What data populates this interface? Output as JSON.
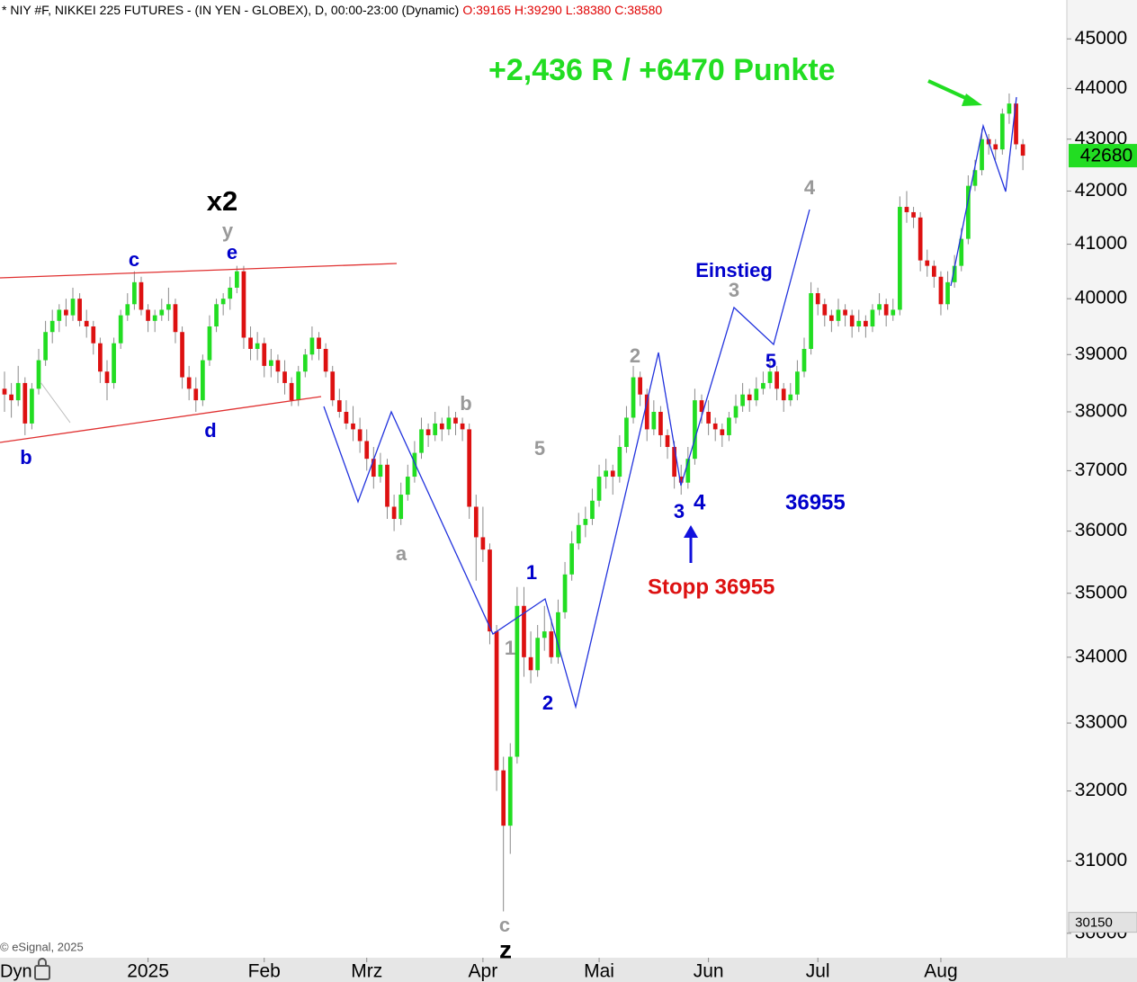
{
  "chart_data": {
    "type": "candlestick",
    "header": "* NIY #F, NIKKEI 225 FUTURES - (IN YEN - GLOBEX), D, 00:00-23:00 (Dynamic)",
    "header_ohlc": "O:39165 H:39290 L:38380 C:38580",
    "copyright": "© eSignal, 2025",
    "footer_left": "Dyn",
    "up_color": "#22dd22",
    "down_color": "#dd1111",
    "log_scale": true,
    "ylim": [
      29670,
      45800
    ],
    "yticks": [
      30000,
      31000,
      32000,
      33000,
      34000,
      35000,
      36000,
      37000,
      38000,
      39000,
      40000,
      41000,
      42000,
      43000,
      44000,
      45000
    ],
    "xlim": [
      -0.66,
      155.3
    ],
    "xticks": [
      {
        "value": 21,
        "label": "2025"
      },
      {
        "value": 38,
        "label": "Feb"
      },
      {
        "value": 53,
        "label": "Mrz"
      },
      {
        "value": 70,
        "label": "Apr"
      },
      {
        "value": 87,
        "label": "Mai"
      },
      {
        "value": 103,
        "label": "Jun"
      },
      {
        "value": 119,
        "label": "Jul"
      },
      {
        "value": 137,
        "label": "Aug"
      }
    ],
    "last_price": 42680,
    "last_price_color": "#22dd22",
    "low_marker": 30150,
    "annotations": [
      {
        "text": "+2,436 R / +6470 Punkte",
        "color": "#22dd22"
      },
      {
        "text": "x2",
        "color": "#000000"
      },
      {
        "text": "y",
        "color": "#999999"
      },
      {
        "text": "e",
        "color": "#0000cc"
      },
      {
        "text": "c",
        "color": "#0000cc"
      },
      {
        "text": "d",
        "color": "#0000cc"
      },
      {
        "text": "b",
        "color": "#0000cc"
      },
      {
        "text": "b",
        "color": "#999999"
      },
      {
        "text": "a",
        "color": "#999999"
      },
      {
        "text": "c",
        "color": "#999999"
      },
      {
        "text": "z",
        "color": "#000000"
      },
      {
        "text": "1",
        "color": "#0000cc"
      },
      {
        "text": "1",
        "color": "#999999"
      },
      {
        "text": "2",
        "color": "#0000cc"
      },
      {
        "text": "2",
        "color": "#999999"
      },
      {
        "text": "3",
        "color": "#0000cc"
      },
      {
        "text": "4",
        "color": "#0000cc"
      },
      {
        "text": "36955",
        "color": "#0000cc"
      },
      {
        "text": "Stopp 36955",
        "color": "#dd1111"
      },
      {
        "text": "Einstieg",
        "color": "#0000cc"
      },
      {
        "text": "3",
        "color": "#999999"
      },
      {
        "text": "5",
        "color": "#0000cc"
      },
      {
        "text": "4",
        "color": "#999999"
      },
      {
        "text": "5",
        "color": "#999999"
      }
    ],
    "candles": [
      [
        38400,
        38700,
        38000,
        38300
      ],
      [
        38300,
        38500,
        37900,
        38200
      ],
      [
        38200,
        38800,
        38100,
        38500
      ],
      [
        38500,
        38600,
        37600,
        37800
      ],
      [
        37800,
        38500,
        37700,
        38400
      ],
      [
        38400,
        39100,
        38300,
        38900
      ],
      [
        38900,
        39600,
        38800,
        39400
      ],
      [
        39400,
        39800,
        39200,
        39600
      ],
      [
        39600,
        39900,
        39400,
        39800
      ],
      [
        39800,
        40000,
        39500,
        39700
      ],
      [
        39700,
        40200,
        39600,
        40000
      ],
      [
        40000,
        40100,
        39500,
        39600
      ],
      [
        39600,
        39800,
        39300,
        39500
      ],
      [
        39500,
        39600,
        39000,
        39200
      ],
      [
        39200,
        39300,
        38500,
        38700
      ],
      [
        38700,
        38900,
        38200,
        38500
      ],
      [
        38500,
        39300,
        38400,
        39200
      ],
      [
        39200,
        39800,
        39100,
        39700
      ],
      [
        39700,
        40100,
        39600,
        39900
      ],
      [
        39900,
        40500,
        39800,
        40300
      ],
      [
        40300,
        40400,
        39700,
        39800
      ],
      [
        39800,
        39900,
        39400,
        39600
      ],
      [
        39600,
        39800,
        39400,
        39700
      ],
      [
        39700,
        40000,
        39600,
        39800
      ],
      [
        39800,
        40200,
        39600,
        39900
      ],
      [
        39900,
        40000,
        39200,
        39400
      ],
      [
        39400,
        39500,
        38400,
        38600
      ],
      [
        38600,
        38800,
        38200,
        38400
      ],
      [
        38400,
        38600,
        38000,
        38200
      ],
      [
        38200,
        39000,
        38100,
        38900
      ],
      [
        38900,
        39700,
        38800,
        39500
      ],
      [
        39500,
        40000,
        39400,
        39900
      ],
      [
        39900,
        40100,
        39700,
        40000
      ],
      [
        40000,
        40400,
        39800,
        40200
      ],
      [
        40200,
        40600,
        40100,
        40500
      ],
      [
        40500,
        40600,
        39100,
        39300
      ],
      [
        39300,
        39500,
        38900,
        39100
      ],
      [
        39100,
        39400,
        38900,
        39200
      ],
      [
        39200,
        39300,
        38600,
        38800
      ],
      [
        38800,
        39100,
        38600,
        38900
      ],
      [
        38900,
        39000,
        38500,
        38700
      ],
      [
        38700,
        38900,
        38300,
        38500
      ],
      [
        38500,
        38600,
        38100,
        38200
      ],
      [
        38200,
        38800,
        38100,
        38700
      ],
      [
        38700,
        39100,
        38600,
        39000
      ],
      [
        39000,
        39500,
        38900,
        39300
      ],
      [
        39300,
        39400,
        38900,
        39100
      ],
      [
        39100,
        39200,
        38600,
        38700
      ],
      [
        38700,
        38800,
        38100,
        38200
      ],
      [
        38200,
        38400,
        37900,
        38000
      ],
      [
        38000,
        38200,
        37700,
        37800
      ],
      [
        37800,
        38100,
        37500,
        37700
      ],
      [
        37700,
        37900,
        37300,
        37500
      ],
      [
        37500,
        37700,
        37000,
        37200
      ],
      [
        37200,
        37400,
        36700,
        36900
      ],
      [
        36900,
        37300,
        36800,
        37100
      ],
      [
        37100,
        37200,
        36200,
        36400
      ],
      [
        36400,
        36600,
        36000,
        36200
      ],
      [
        36200,
        36800,
        36100,
        36600
      ],
      [
        36600,
        37100,
        36500,
        36900
      ],
      [
        36900,
        37500,
        36800,
        37300
      ],
      [
        37300,
        37900,
        37200,
        37700
      ],
      [
        37700,
        37800,
        37400,
        37600
      ],
      [
        37600,
        38000,
        37500,
        37800
      ],
      [
        37800,
        37900,
        37500,
        37700
      ],
      [
        37700,
        38100,
        37600,
        37900
      ],
      [
        37900,
        38000,
        37600,
        37800
      ],
      [
        37800,
        37900,
        37500,
        37700
      ],
      [
        37700,
        37800,
        36200,
        36400
      ],
      [
        36400,
        36600,
        35200,
        35900
      ],
      [
        35900,
        36400,
        35500,
        35700
      ],
      [
        35700,
        35800,
        34200,
        34400
      ],
      [
        34400,
        34500,
        32000,
        32300
      ],
      [
        32300,
        32500,
        30300,
        31500
      ],
      [
        31500,
        32700,
        31100,
        32500
      ],
      [
        32500,
        35100,
        32400,
        34800
      ],
      [
        34800,
        35100,
        33700,
        34000
      ],
      [
        34000,
        34400,
        33600,
        33800
      ],
      [
        33800,
        34500,
        33700,
        34300
      ],
      [
        34300,
        34800,
        34100,
        34400
      ],
      [
        34400,
        34600,
        33900,
        34000
      ],
      [
        34000,
        34900,
        33900,
        34700
      ],
      [
        34700,
        35500,
        34600,
        35300
      ],
      [
        35300,
        36000,
        35200,
        35800
      ],
      [
        35800,
        36300,
        35700,
        36100
      ],
      [
        36100,
        36400,
        35900,
        36200
      ],
      [
        36200,
        36700,
        36100,
        36500
      ],
      [
        36500,
        37100,
        36400,
        36900
      ],
      [
        36900,
        37200,
        36700,
        37000
      ],
      [
        37000,
        37100,
        36600,
        36900
      ],
      [
        36900,
        37600,
        36800,
        37400
      ],
      [
        37400,
        38100,
        37300,
        37900
      ],
      [
        37900,
        38800,
        37800,
        38600
      ],
      [
        38600,
        38700,
        38100,
        38300
      ],
      [
        38300,
        38400,
        37500,
        37700
      ],
      [
        37700,
        38200,
        37600,
        38000
      ],
      [
        38000,
        38100,
        37400,
        37600
      ],
      [
        37600,
        37700,
        37200,
        37400
      ],
      [
        37400,
        37500,
        36700,
        36900
      ],
      [
        36900,
        37100,
        36600,
        36800
      ],
      [
        36800,
        37400,
        36700,
        37200
      ],
      [
        37200,
        38400,
        37100,
        38200
      ],
      [
        38200,
        38300,
        37800,
        38000
      ],
      [
        38000,
        38200,
        37600,
        37800
      ],
      [
        37800,
        37900,
        37500,
        37700
      ],
      [
        37700,
        37800,
        37400,
        37600
      ],
      [
        37600,
        38000,
        37500,
        37900
      ],
      [
        37900,
        38300,
        37800,
        38100
      ],
      [
        38100,
        38500,
        38000,
        38300
      ],
      [
        38300,
        38400,
        38000,
        38200
      ],
      [
        38200,
        38600,
        38100,
        38400
      ],
      [
        38400,
        38700,
        38300,
        38500
      ],
      [
        38500,
        38900,
        38400,
        38700
      ],
      [
        38700,
        38800,
        38200,
        38400
      ],
      [
        38400,
        38500,
        38000,
        38200
      ],
      [
        38200,
        38500,
        38100,
        38300
      ],
      [
        38300,
        38900,
        38200,
        38700
      ],
      [
        38700,
        39300,
        38600,
        39100
      ],
      [
        39100,
        40300,
        39000,
        40100
      ],
      [
        40100,
        40200,
        39700,
        39900
      ],
      [
        39900,
        40000,
        39500,
        39700
      ],
      [
        39700,
        39800,
        39400,
        39600
      ],
      [
        39600,
        40000,
        39500,
        39800
      ],
      [
        39800,
        39900,
        39500,
        39700
      ],
      [
        39700,
        39800,
        39300,
        39500
      ],
      [
        39500,
        39800,
        39400,
        39600
      ],
      [
        39600,
        39700,
        39300,
        39500
      ],
      [
        39500,
        39900,
        39400,
        39800
      ],
      [
        39800,
        40100,
        39700,
        39900
      ],
      [
        39900,
        40000,
        39500,
        39700
      ],
      [
        39700,
        40000,
        39600,
        39800
      ],
      [
        39800,
        41900,
        39700,
        41700
      ],
      [
        41700,
        42000,
        41400,
        41600
      ],
      [
        41600,
        41700,
        41300,
        41500
      ],
      [
        41500,
        41600,
        40500,
        40700
      ],
      [
        40700,
        40900,
        40400,
        40600
      ],
      [
        40600,
        40700,
        40200,
        40400
      ],
      [
        40400,
        40500,
        39700,
        39900
      ],
      [
        39900,
        40500,
        39800,
        40300
      ],
      [
        40300,
        40800,
        40200,
        40600
      ],
      [
        40600,
        41300,
        40500,
        41100
      ],
      [
        41100,
        42300,
        41000,
        42100
      ],
      [
        42100,
        42600,
        42000,
        42400
      ],
      [
        42400,
        43200,
        42300,
        43000
      ],
      [
        43000,
        43100,
        42700,
        42900
      ],
      [
        42900,
        43000,
        42600,
        42800
      ],
      [
        42800,
        43600,
        42700,
        43500
      ],
      [
        43500,
        43900,
        43300,
        43700
      ],
      [
        43700,
        43800,
        42800,
        42900
      ],
      [
        42900,
        43000,
        42400,
        42680
      ]
    ]
  }
}
